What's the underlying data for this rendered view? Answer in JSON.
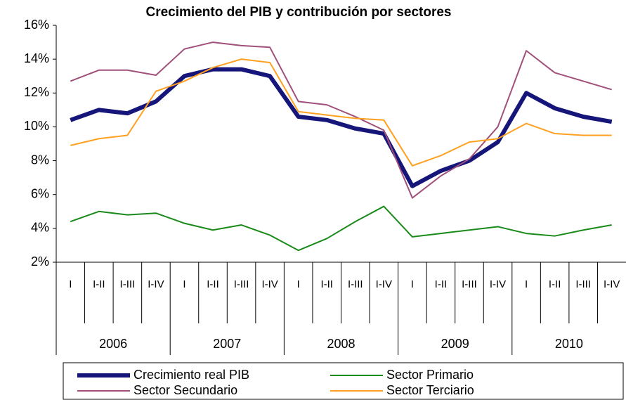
{
  "chart_data": {
    "type": "line",
    "title": "Crecimiento del PIB y contribución por sectores",
    "categories": [
      "I",
      "I-II",
      "I-III",
      "I-IV",
      "I",
      "I-II",
      "I-III",
      "I-IV",
      "I",
      "I-II",
      "I-III",
      "I-IV",
      "I",
      "I-II",
      "I-III",
      "I-IV",
      "I",
      "I-II",
      "I-III",
      "I-IV"
    ],
    "year_groups": [
      "2006",
      "2007",
      "2008",
      "2009",
      "2010"
    ],
    "series": [
      {
        "name": "Crecimiento real PIB",
        "color": "#16167a",
        "values": [
          10.4,
          11.0,
          10.8,
          11.5,
          13.0,
          13.4,
          13.4,
          13.0,
          10.6,
          10.4,
          9.9,
          9.6,
          6.5,
          7.4,
          8.0,
          9.1,
          12.0,
          11.1,
          10.6,
          10.3
        ]
      },
      {
        "name": "Sector Primario",
        "color": "#1a8a1a",
        "values": [
          4.4,
          5.0,
          4.8,
          4.9,
          4.3,
          3.9,
          4.2,
          3.6,
          2.7,
          3.4,
          4.4,
          5.3,
          3.5,
          3.7,
          3.9,
          4.1,
          3.7,
          3.55,
          3.9,
          4.2
        ]
      },
      {
        "name": "Sector Secundario",
        "color": "#a0507a",
        "values": [
          12.7,
          13.35,
          13.35,
          13.05,
          14.6,
          15.0,
          14.8,
          14.7,
          11.5,
          11.3,
          10.6,
          9.8,
          5.8,
          7.1,
          8.1,
          10.0,
          14.5,
          13.2,
          12.7,
          12.2
        ]
      },
      {
        "name": "Sector Terciario",
        "color": "#ffa020",
        "values": [
          8.9,
          9.3,
          9.5,
          12.1,
          12.7,
          13.5,
          14.0,
          13.8,
          10.9,
          10.7,
          10.5,
          10.4,
          7.7,
          8.3,
          9.1,
          9.3,
          10.2,
          9.6,
          9.5,
          9.5
        ]
      }
    ],
    "ylim": [
      2,
      16
    ],
    "yticks": [
      {
        "value": 2,
        "label": "2%"
      },
      {
        "value": 4,
        "label": "4%"
      },
      {
        "value": 6,
        "label": "6%"
      },
      {
        "value": 8,
        "label": "8%"
      },
      {
        "value": 10,
        "label": "10%"
      },
      {
        "value": 12,
        "label": "12%"
      },
      {
        "value": 14,
        "label": "14%"
      },
      {
        "value": 16,
        "label": "16%"
      }
    ]
  }
}
